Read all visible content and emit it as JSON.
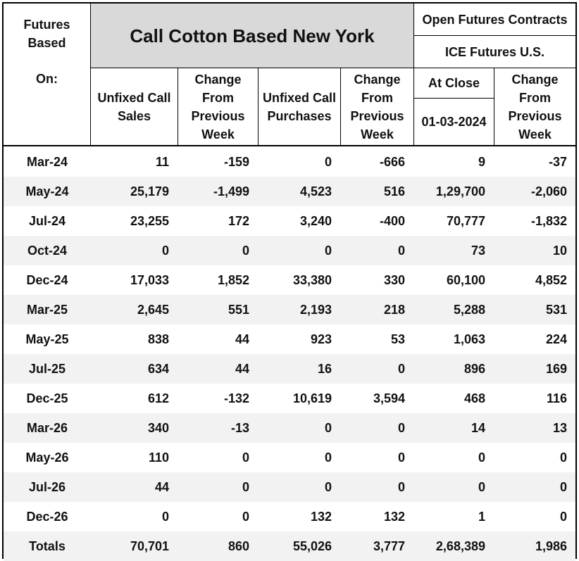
{
  "header": {
    "corner_line1": "Futures",
    "corner_line2": "Based",
    "corner_line3": "On:",
    "title": "Call Cotton Based New York",
    "open_futures": "Open Futures Contracts",
    "exchange": "ICE Futures U.S.",
    "at_close": "At Close",
    "date": "01-03-2024",
    "col_unfixed_sales_1": "Unfixed Call",
    "col_unfixed_sales_2": "Sales",
    "col_change_1": "Change",
    "col_change_2": "From",
    "col_change_3": "Previous",
    "col_change_4": "Week",
    "col_unfixed_purch_1": "Unfixed Call",
    "col_unfixed_purch_2": "Purchases"
  },
  "rows": [
    {
      "month": "Mar-24",
      "sales": "11",
      "sales_chg": "-159",
      "purch": "0",
      "purch_chg": "-666",
      "close": "9",
      "close_chg": "-37"
    },
    {
      "month": "May-24",
      "sales": "25,179",
      "sales_chg": "-1,499",
      "purch": "4,523",
      "purch_chg": "516",
      "close": "1,29,700",
      "close_chg": "-2,060"
    },
    {
      "month": "Jul-24",
      "sales": "23,255",
      "sales_chg": "172",
      "purch": "3,240",
      "purch_chg": "-400",
      "close": "70,777",
      "close_chg": "-1,832"
    },
    {
      "month": "Oct-24",
      "sales": "0",
      "sales_chg": "0",
      "purch": "0",
      "purch_chg": "0",
      "close": "73",
      "close_chg": "10"
    },
    {
      "month": "Dec-24",
      "sales": "17,033",
      "sales_chg": "1,852",
      "purch": "33,380",
      "purch_chg": "330",
      "close": "60,100",
      "close_chg": "4,852"
    },
    {
      "month": "Mar-25",
      "sales": "2,645",
      "sales_chg": "551",
      "purch": "2,193",
      "purch_chg": "218",
      "close": "5,288",
      "close_chg": "531"
    },
    {
      "month": "May-25",
      "sales": "838",
      "sales_chg": "44",
      "purch": "923",
      "purch_chg": "53",
      "close": "1,063",
      "close_chg": "224"
    },
    {
      "month": "Jul-25",
      "sales": "634",
      "sales_chg": "44",
      "purch": "16",
      "purch_chg": "0",
      "close": "896",
      "close_chg": "169"
    },
    {
      "month": "Dec-25",
      "sales": "612",
      "sales_chg": "-132",
      "purch": "10,619",
      "purch_chg": "3,594",
      "close": "468",
      "close_chg": "116"
    },
    {
      "month": "Mar-26",
      "sales": "340",
      "sales_chg": "-13",
      "purch": "0",
      "purch_chg": "0",
      "close": "14",
      "close_chg": "13"
    },
    {
      "month": "May-26",
      "sales": "110",
      "sales_chg": "0",
      "purch": "0",
      "purch_chg": "0",
      "close": "0",
      "close_chg": "0"
    },
    {
      "month": "Jul-26",
      "sales": "44",
      "sales_chg": "0",
      "purch": "0",
      "purch_chg": "0",
      "close": "0",
      "close_chg": "0"
    },
    {
      "month": "Dec-26",
      "sales": "0",
      "sales_chg": "0",
      "purch": "132",
      "purch_chg": "132",
      "close": "1",
      "close_chg": "0"
    },
    {
      "month": "Totals",
      "sales": "70,701",
      "sales_chg": "860",
      "purch": "55,026",
      "purch_chg": "3,777",
      "close": "2,68,389",
      "close_chg": "1,986"
    }
  ]
}
